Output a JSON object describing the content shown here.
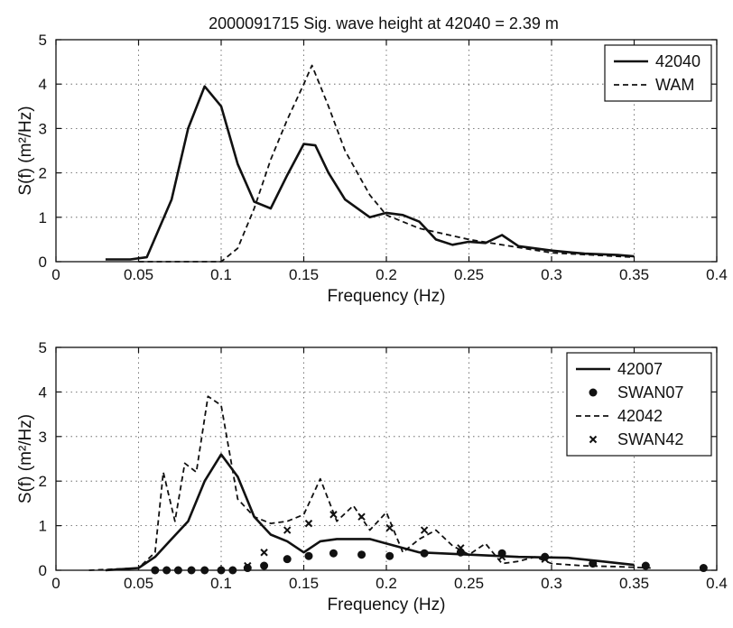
{
  "chart_data": [
    {
      "type": "line",
      "title": "2000091715  Sig. wave height at 42040 = 2.39 m",
      "xlabel": "Frequency (Hz)",
      "ylabel": "S(f) (m²/Hz)",
      "xlim": [
        0,
        0.4
      ],
      "ylim": [
        0,
        5
      ],
      "xticks": [
        "0",
        "0.05",
        "0.1",
        "0.15",
        "0.2",
        "0.25",
        "0.3",
        "0.35",
        "0.4"
      ],
      "yticks": [
        "0",
        "1",
        "2",
        "3",
        "4",
        "5"
      ],
      "grid": true,
      "legend_position": "top-right",
      "series": [
        {
          "name": "42040",
          "style": "solid-line",
          "x": [
            0.03,
            0.045,
            0.055,
            0.07,
            0.08,
            0.09,
            0.1,
            0.11,
            0.12,
            0.13,
            0.14,
            0.15,
            0.157,
            0.165,
            0.175,
            0.19,
            0.2,
            0.21,
            0.22,
            0.23,
            0.24,
            0.25,
            0.26,
            0.27,
            0.28,
            0.3,
            0.32,
            0.34,
            0.35
          ],
          "y": [
            0.05,
            0.05,
            0.1,
            1.4,
            3.0,
            3.95,
            3.5,
            2.2,
            1.35,
            1.2,
            1.95,
            2.65,
            2.62,
            2.0,
            1.4,
            1.0,
            1.1,
            1.05,
            0.9,
            0.5,
            0.38,
            0.45,
            0.42,
            0.6,
            0.35,
            0.25,
            0.18,
            0.15,
            0.12
          ]
        },
        {
          "name": "WAM",
          "style": "dashed-line",
          "x": [
            0.05,
            0.09,
            0.1,
            0.11,
            0.12,
            0.13,
            0.14,
            0.15,
            0.155,
            0.165,
            0.175,
            0.19,
            0.2,
            0.22,
            0.25,
            0.3,
            0.35
          ],
          "y": [
            0.0,
            0.0,
            0.0,
            0.3,
            1.2,
            2.3,
            3.2,
            4.0,
            4.42,
            3.5,
            2.5,
            1.5,
            1.05,
            0.75,
            0.5,
            0.2,
            0.1
          ]
        }
      ]
    },
    {
      "type": "line",
      "xlabel": "Frequency (Hz)",
      "ylabel": "S(f) (m²/Hz)",
      "xlim": [
        0,
        0.4
      ],
      "ylim": [
        0,
        5
      ],
      "xticks": [
        "0",
        "0.05",
        "0.1",
        "0.15",
        "0.2",
        "0.25",
        "0.3",
        "0.35",
        "0.4"
      ],
      "yticks": [
        "0",
        "1",
        "2",
        "3",
        "4",
        "5"
      ],
      "grid": true,
      "legend_position": "top-right",
      "series": [
        {
          "name": "42007",
          "style": "solid-line",
          "x": [
            0.03,
            0.05,
            0.06,
            0.07,
            0.08,
            0.09,
            0.1,
            0.11,
            0.12,
            0.13,
            0.14,
            0.15,
            0.16,
            0.17,
            0.19,
            0.2,
            0.22,
            0.25,
            0.28,
            0.31,
            0.33,
            0.35
          ],
          "y": [
            0.0,
            0.05,
            0.3,
            0.7,
            1.1,
            2.0,
            2.6,
            2.1,
            1.2,
            0.8,
            0.65,
            0.4,
            0.65,
            0.7,
            0.7,
            0.6,
            0.4,
            0.35,
            0.3,
            0.28,
            0.2,
            0.12
          ]
        },
        {
          "name": "SWAN07",
          "style": "filled-circle-markers",
          "x": [
            0.06,
            0.067,
            0.074,
            0.082,
            0.09,
            0.1,
            0.107,
            0.116,
            0.126,
            0.14,
            0.153,
            0.168,
            0.185,
            0.202,
            0.223,
            0.245,
            0.27,
            0.296,
            0.325,
            0.357,
            0.392
          ],
          "y": [
            0.0,
            0.0,
            0.0,
            0.0,
            0.0,
            0.0,
            0.0,
            0.05,
            0.1,
            0.25,
            0.32,
            0.38,
            0.35,
            0.32,
            0.38,
            0.4,
            0.38,
            0.3,
            0.15,
            0.1,
            0.05
          ]
        },
        {
          "name": "42042",
          "style": "dashed-line",
          "x": [
            0.02,
            0.05,
            0.06,
            0.065,
            0.072,
            0.078,
            0.085,
            0.092,
            0.1,
            0.11,
            0.12,
            0.13,
            0.14,
            0.15,
            0.16,
            0.17,
            0.18,
            0.19,
            0.2,
            0.21,
            0.22,
            0.23,
            0.24,
            0.25,
            0.26,
            0.27,
            0.28,
            0.29,
            0.3,
            0.32,
            0.34,
            0.36
          ],
          "y": [
            0.0,
            0.05,
            0.4,
            2.2,
            1.1,
            2.4,
            2.2,
            3.9,
            3.7,
            1.6,
            1.2,
            1.05,
            1.1,
            1.25,
            2.05,
            1.1,
            1.45,
            0.9,
            1.3,
            0.4,
            0.7,
            0.9,
            0.55,
            0.35,
            0.6,
            0.15,
            0.2,
            0.3,
            0.15,
            0.1,
            0.08,
            0.05
          ]
        },
        {
          "name": "SWAN42",
          "style": "x-markers",
          "x": [
            0.116,
            0.126,
            0.14,
            0.153,
            0.168,
            0.185,
            0.202,
            0.223,
            0.245,
            0.27,
            0.296
          ],
          "y": [
            0.1,
            0.4,
            0.9,
            1.05,
            1.25,
            1.2,
            0.95,
            0.9,
            0.5,
            0.3,
            0.25
          ]
        }
      ]
    }
  ]
}
